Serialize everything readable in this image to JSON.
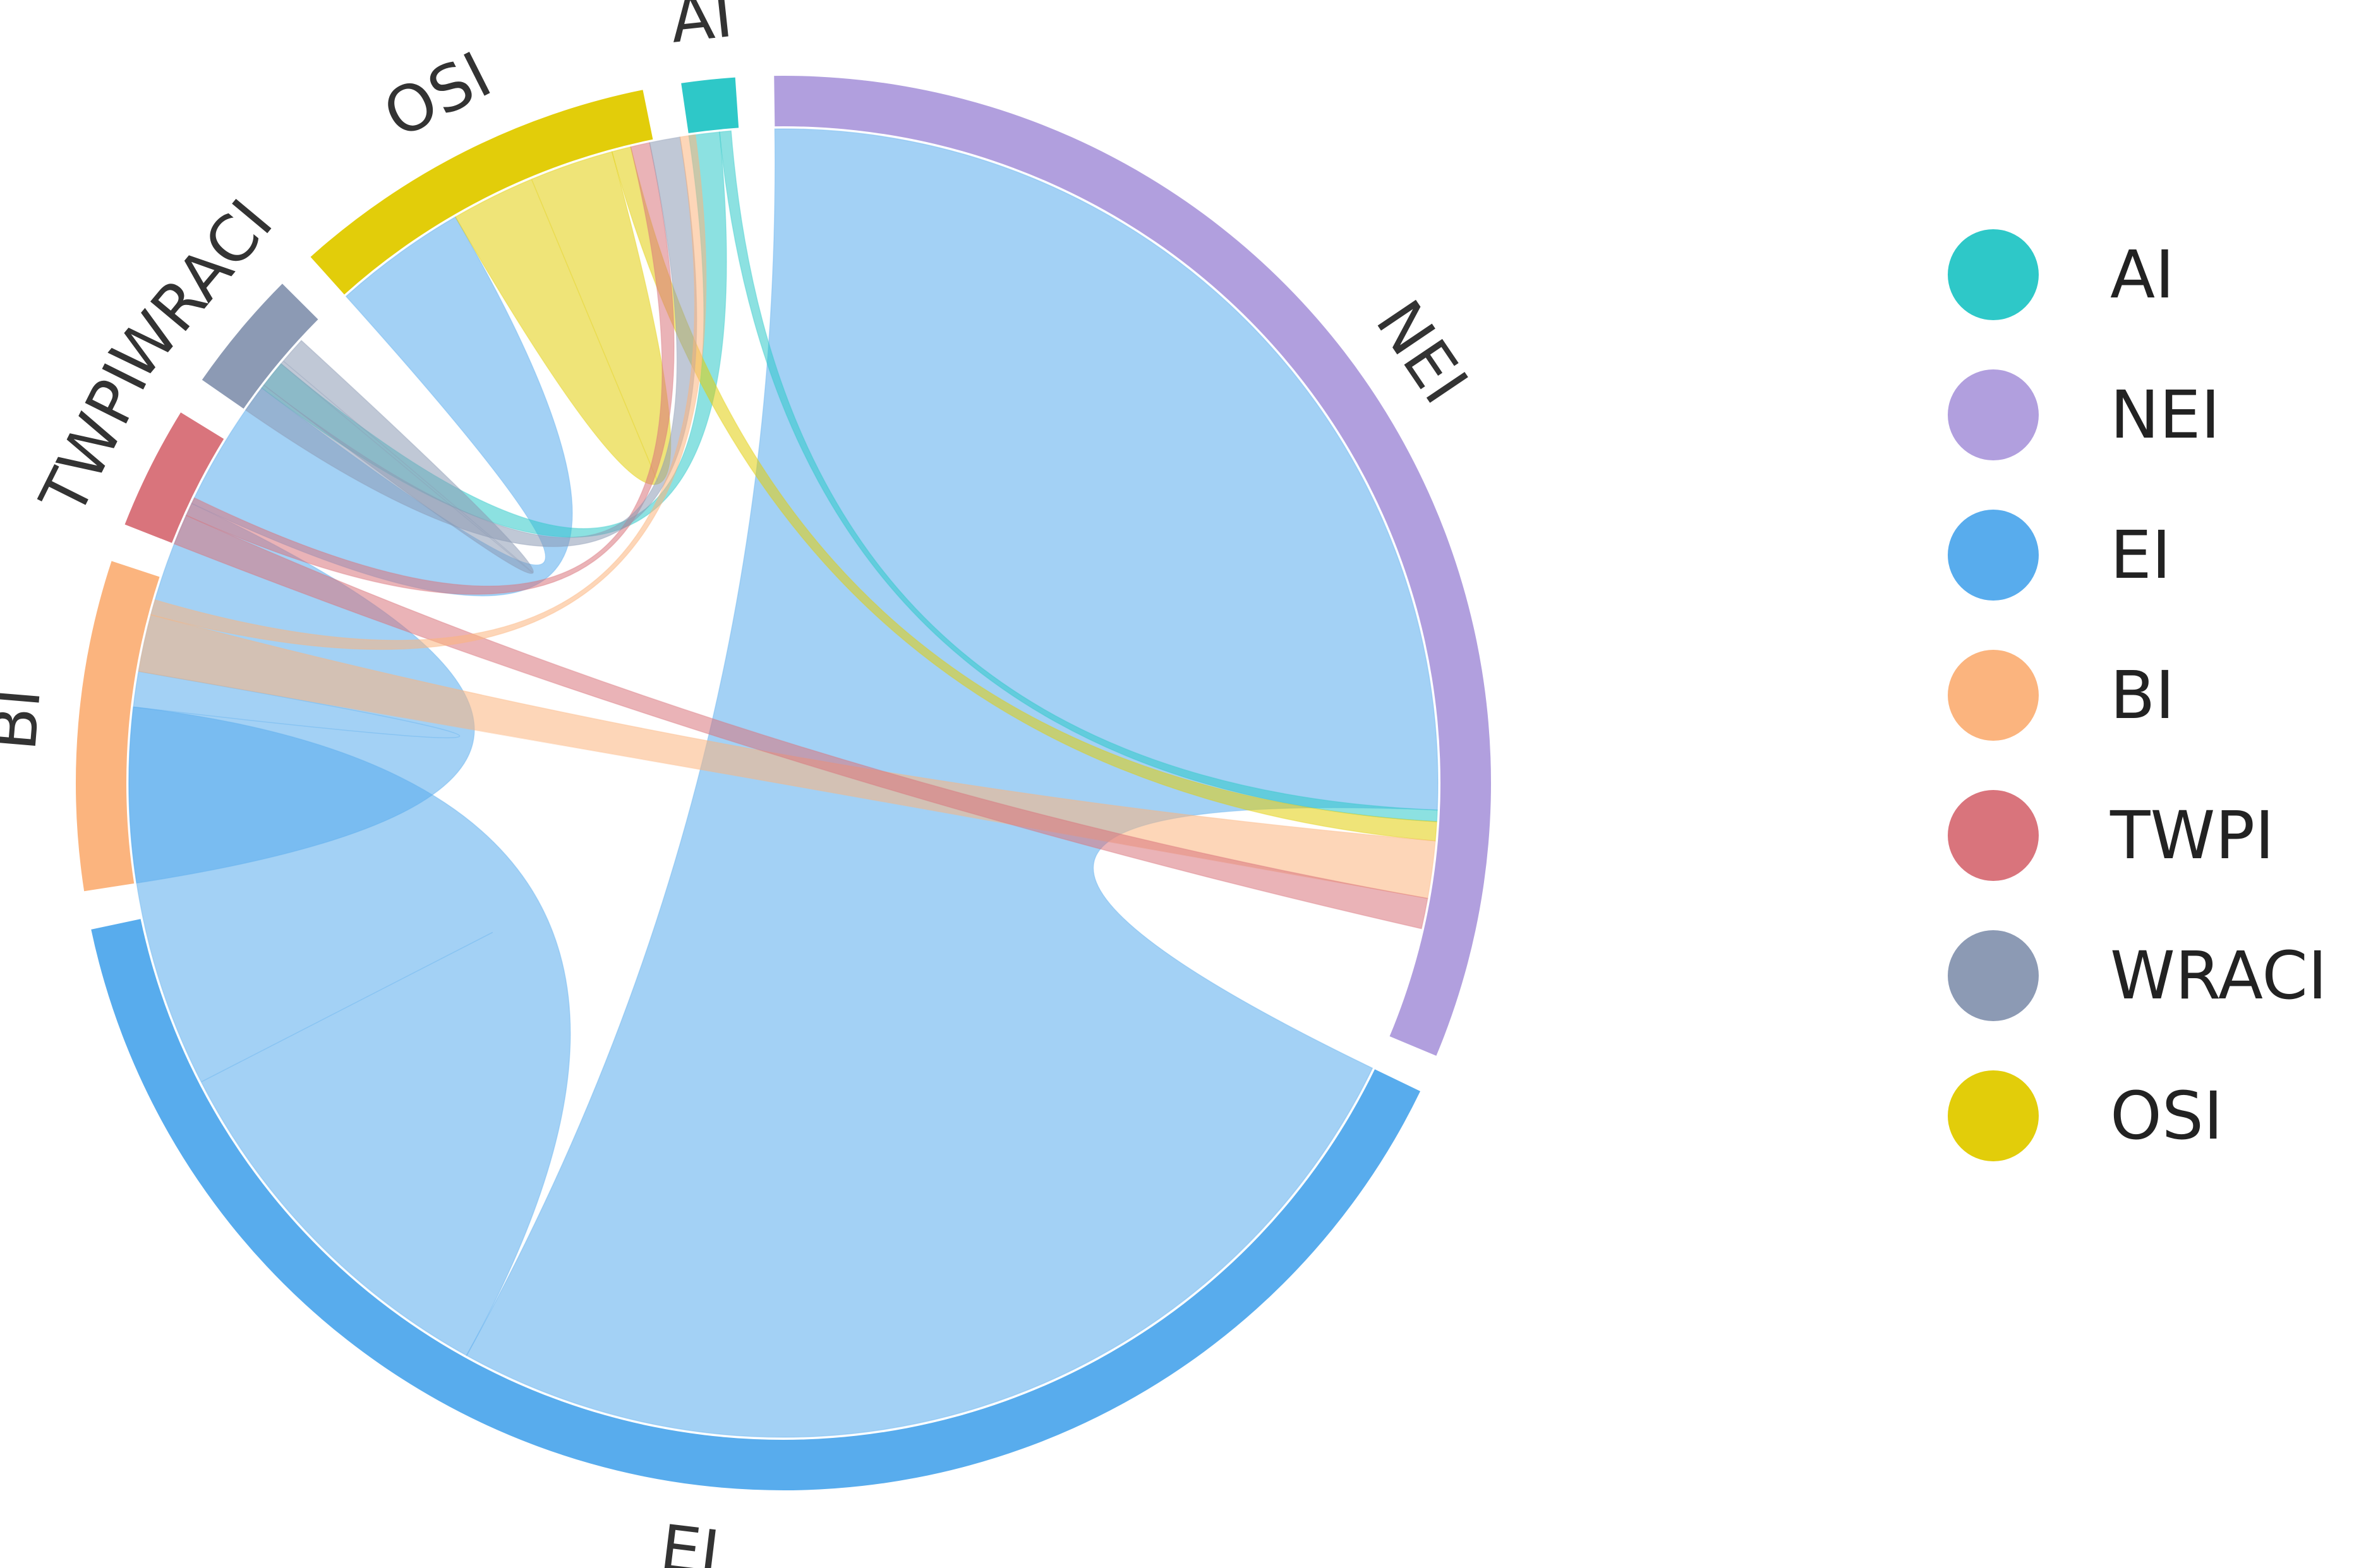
{
  "chart_data": {
    "type": "chord",
    "title": "",
    "groups": [
      {
        "name": "AI",
        "value": 1.3,
        "color": "#2ec8c8"
      },
      {
        "name": "NEI",
        "value": 33.5,
        "color": "#b19fde"
      },
      {
        "name": "EI",
        "value": 42,
        "color": "#58aced"
      },
      {
        "name": "BI",
        "value": 8,
        "color": "#fbb47e"
      },
      {
        "name": "TWPI",
        "value": 3,
        "color": "#d9747c"
      },
      {
        "name": "WRACI",
        "value": 3,
        "color": "#8c9ab4"
      },
      {
        "name": "OSI",
        "value": 9,
        "color": "#e2cd0a"
      }
    ],
    "links": [
      {
        "source": "EI",
        "target": "NEI",
        "value": 27.5
      },
      {
        "source": "EI",
        "target": "EI",
        "value": 10
      },
      {
        "source": "EI",
        "target": "BI",
        "value": 5.5
      },
      {
        "source": "EI",
        "target": "OSI",
        "value": 3.5
      },
      {
        "source": "AI",
        "target": "EI",
        "value": 0.8
      },
      {
        "source": "AI",
        "target": "NEI",
        "value": 0.3
      },
      {
        "source": "OSI",
        "target": "OSI",
        "value": 2.2
      },
      {
        "source": "OSI",
        "target": "NEI",
        "value": 0.5
      },
      {
        "source": "BI",
        "target": "NEI",
        "value": 1.5
      },
      {
        "source": "TWPI",
        "target": "NEI",
        "value": 0.8
      },
      {
        "source": "TWPI",
        "target": "OSI",
        "value": 0.5
      },
      {
        "source": "WRACI",
        "target": "OSI",
        "value": 0.8
      },
      {
        "source": "WRACI",
        "target": "EI",
        "value": 0.8
      },
      {
        "source": "BI",
        "target": "OSI",
        "value": 0.4
      }
    ],
    "legend_position": "right"
  }
}
